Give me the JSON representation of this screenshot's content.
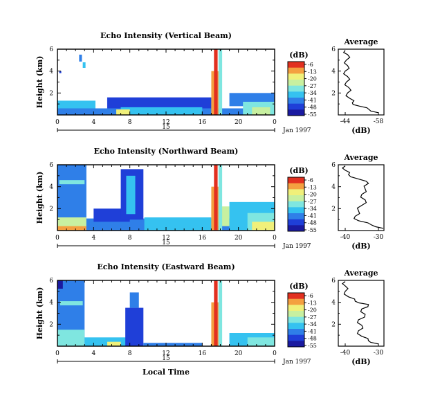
{
  "colors": {
    "scale": [
      "#1a1aa0",
      "#1f3fd8",
      "#2f7fe8",
      "#35c2f0",
      "#7fe6e0",
      "#c8f0a0",
      "#f0f07a",
      "#f4a040",
      "#e23020"
    ],
    "background": "#ffffff",
    "line": "#000000"
  },
  "chart_data": [
    {
      "type": "heatmap",
      "title": "Echo Intensity (Vertical Beam)",
      "ylabel": "Height (km)",
      "ylim": [
        0,
        6
      ],
      "yticks": [
        "6",
        "4",
        "2"
      ],
      "xlim": [
        0,
        24
      ],
      "xticks": [
        "0",
        "4",
        "8",
        "12",
        "16",
        "20",
        "0"
      ],
      "date_center": "15",
      "date_label": "Jan 1997",
      "colorbar": {
        "unit": "(dB)",
        "ticks": [
          "-6",
          "-13",
          "-20",
          "-27",
          "-34",
          "-41",
          "-48",
          "-55"
        ]
      },
      "avg_panel": {
        "title": "Average",
        "xlabel": "(dB)",
        "xticks": [
          "-44",
          "-58"
        ],
        "ylim": [
          0,
          6
        ],
        "yticks": [
          "6",
          "4",
          "2"
        ],
        "profile": [
          [
            -58,
            0.2
          ],
          [
            -54,
            0.5
          ],
          [
            -50,
            0.8
          ],
          [
            -47,
            1.1
          ],
          [
            -46,
            1.5
          ],
          [
            -45,
            2.0
          ],
          [
            -45.5,
            2.5
          ],
          [
            -44.5,
            3.0
          ],
          [
            -45,
            3.5
          ],
          [
            -44,
            4.0
          ],
          [
            -45,
            4.5
          ],
          [
            -44.5,
            5.0
          ],
          [
            -45,
            5.5
          ],
          [
            -44,
            5.9
          ]
        ]
      }
    },
    {
      "type": "heatmap",
      "title": "Echo Intensity (Northward Beam)",
      "ylabel": "Height (km)",
      "ylim": [
        0,
        6
      ],
      "yticks": [
        "6",
        "4",
        "2"
      ],
      "xlim": [
        0,
        24
      ],
      "xticks": [
        "0",
        "4",
        "8",
        "12",
        "16",
        "20",
        "0"
      ],
      "date_center": "15",
      "date_label": "Jan 1997",
      "colorbar": {
        "unit": "(dB)",
        "ticks": [
          "-6",
          "-13",
          "-20",
          "-27",
          "-34",
          "-41",
          "-48",
          "-55"
        ]
      },
      "avg_panel": {
        "title": "Average",
        "xlabel": "(dB)",
        "xticks": [
          "-40",
          "-30"
        ],
        "ylim": [
          0,
          6
        ],
        "yticks": [
          "6",
          "4",
          "2"
        ],
        "profile": [
          [
            -28,
            0.2
          ],
          [
            -32,
            0.5
          ],
          [
            -36,
            0.9
          ],
          [
            -37,
            1.3
          ],
          [
            -36,
            1.8
          ],
          [
            -35,
            2.3
          ],
          [
            -34,
            2.8
          ],
          [
            -35,
            3.3
          ],
          [
            -34,
            3.8
          ],
          [
            -33,
            4.3
          ],
          [
            -36,
            4.7
          ],
          [
            -39,
            5.1
          ],
          [
            -40,
            5.5
          ],
          [
            -40,
            5.9
          ]
        ]
      }
    },
    {
      "type": "heatmap",
      "title": "Echo Intensity (Eastward Beam)",
      "ylabel": "Height (km)",
      "ylim": [
        0,
        6
      ],
      "yticks": [
        "6",
        "4",
        "2"
      ],
      "xlim": [
        0,
        24
      ],
      "xticks": [
        "0",
        "4",
        "8",
        "12",
        "16",
        "20",
        "0"
      ],
      "date_center": "15",
      "date_label": "Jan 1997",
      "xlabel": "Local Time",
      "colorbar": {
        "unit": "(dB)",
        "ticks": [
          "-6",
          "-13",
          "-20",
          "-27",
          "-34",
          "-41",
          "-48",
          "-55"
        ]
      },
      "avg_panel": {
        "title": "Average",
        "xlabel": "(dB)",
        "xticks": [
          "-40",
          "-30"
        ],
        "ylim": [
          0,
          6
        ],
        "yticks": [
          "6",
          "4",
          "2"
        ],
        "profile": [
          [
            -30,
            0.2
          ],
          [
            -33,
            0.5
          ],
          [
            -35,
            0.9
          ],
          [
            -36,
            1.4
          ],
          [
            -35,
            1.9
          ],
          [
            -36,
            2.4
          ],
          [
            -34,
            2.9
          ],
          [
            -35,
            3.4
          ],
          [
            -33,
            3.8
          ],
          [
            -37,
            4.1
          ],
          [
            -39,
            4.5
          ],
          [
            -40,
            5.0
          ],
          [
            -40,
            5.5
          ],
          [
            -40,
            5.9
          ]
        ]
      }
    }
  ]
}
